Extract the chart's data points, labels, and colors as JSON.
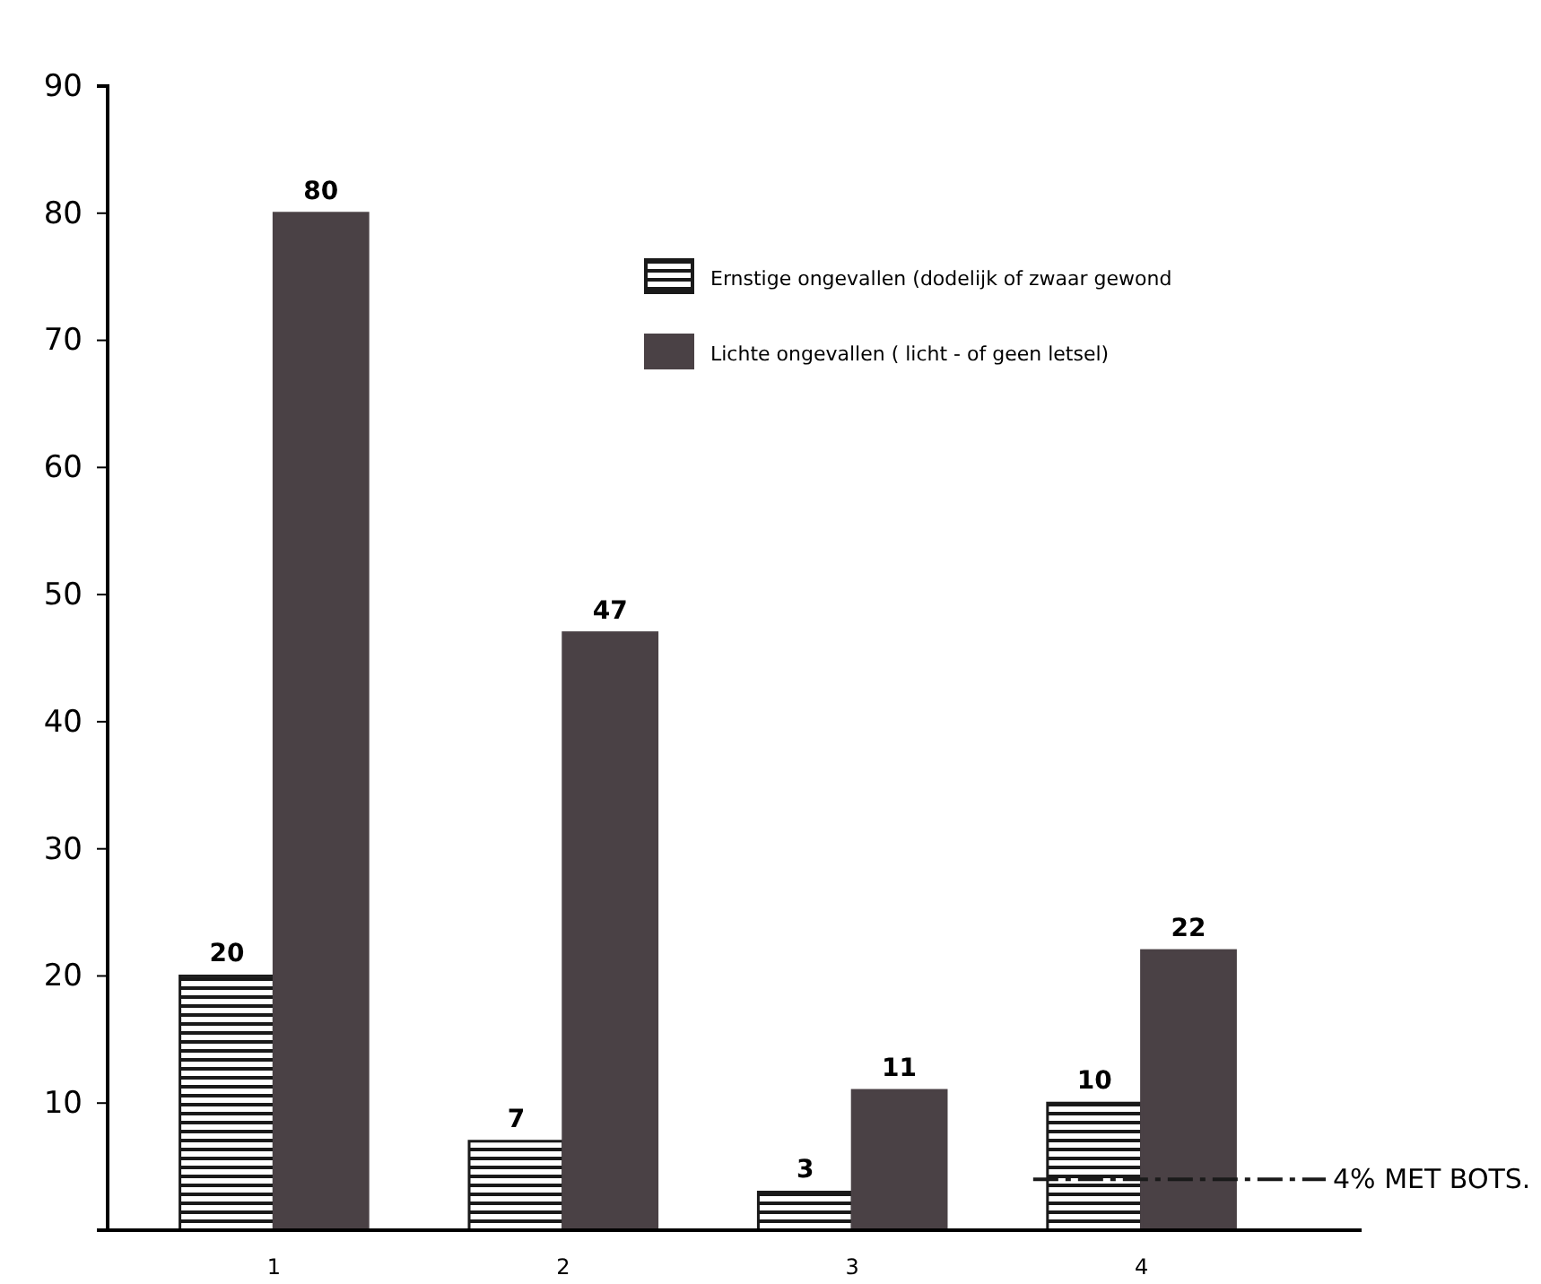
{
  "chart_data": {
    "type": "bar",
    "categories": [
      "1",
      "2",
      "3",
      "4"
    ],
    "series": [
      {
        "name": "Ernstige ongevallen (dodelijk of zwaar gewond",
        "color": "#1a1a1a",
        "values": [
          20,
          7,
          3,
          10
        ]
      },
      {
        "name": "Lichte ongevallen ( licht - of geen letsel)",
        "color": "#4a4145",
        "values": [
          80,
          47,
          11,
          22
        ]
      }
    ],
    "ylim": [
      0,
      90
    ],
    "yticks": [
      {
        "value": 0,
        "label": null
      },
      10,
      20,
      30,
      40,
      50,
      60,
      70,
      80,
      90
    ],
    "data_labels": true,
    "legend": "top right",
    "grid": false,
    "ref_lines": [
      {
        "axis": "y",
        "value": 4,
        "label": "4% MET BOTS.",
        "line_style": "dashed",
        "color": "#1a1a1a"
      }
    ]
  }
}
